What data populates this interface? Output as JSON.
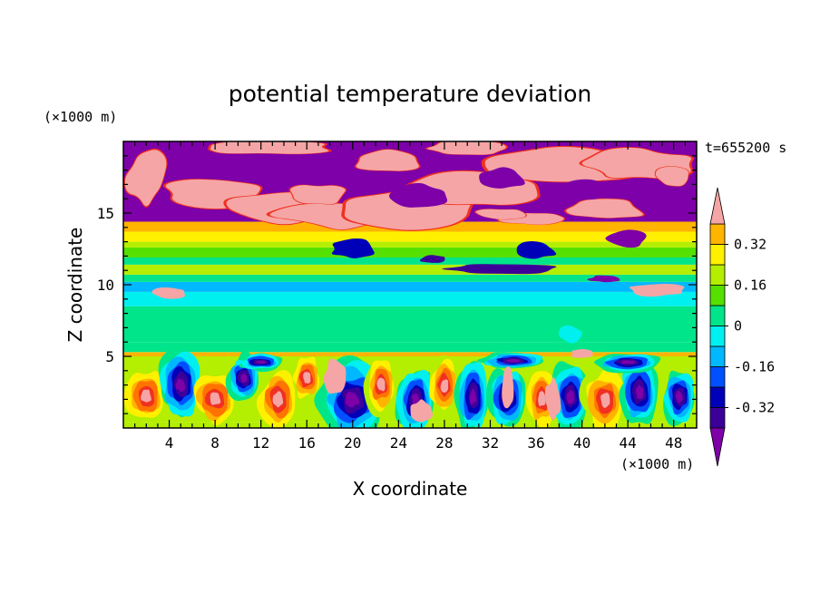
{
  "chart_data": {
    "type": "heatmap",
    "title": "potential temperature deviation",
    "xlabel": "X coordinate",
    "ylabel": "Z coordinate",
    "x_unit": "(×1000 m)",
    "y_unit": "(×1000 m)",
    "time_label": "t=655200 s",
    "xlim": [
      0,
      50
    ],
    "ylim": [
      0,
      20
    ],
    "x_ticks": [
      4,
      8,
      12,
      16,
      20,
      24,
      28,
      32,
      36,
      40,
      44,
      48
    ],
    "y_ticks": [
      5,
      10,
      15
    ],
    "colorbar": {
      "levels": [
        -0.4,
        -0.32,
        -0.24,
        -0.16,
        -0.08,
        0,
        0.08,
        0.16,
        0.24,
        0.32,
        0.4
      ],
      "tick_labels": [
        "0.32",
        "0.16",
        "0",
        "-0.16",
        "-0.32"
      ],
      "tick_values": [
        0.32,
        0.16,
        0,
        -0.16,
        -0.32
      ],
      "colors": [
        "#7d00a8",
        "#3c0099",
        "#0000b8",
        "#0050ff",
        "#00b8ff",
        "#00f0f0",
        "#00e58a",
        "#55e000",
        "#b4ee00",
        "#fff000",
        "#ffb400",
        "#ff7300",
        "#f03020",
        "#f5a5a5"
      ]
    },
    "layers": [
      {
        "z": [
          0.4,
          5.0
        ],
        "pattern": "turbulent mix of all levels, strong positive and negative cells"
      },
      {
        "z": [
          5.0,
          5.3
        ],
        "value": 0.36
      },
      {
        "z": [
          5.3,
          6.0
        ],
        "value": 0.04
      },
      {
        "z": [
          6.0,
          8.5
        ],
        "value": 0.02
      },
      {
        "z": [
          8.5,
          9.5
        ],
        "value": -0.08
      },
      {
        "z": [
          9.5,
          10.2
        ],
        "value": -0.12
      },
      {
        "z": [
          10.2,
          10.7
        ],
        "value": 0.04
      },
      {
        "z": [
          10.7,
          11.4
        ],
        "value": 0.2
      },
      {
        "z": [
          11.4,
          11.9
        ],
        "value": 0.05
      },
      {
        "z": [
          11.9,
          12.6
        ],
        "value": 0.12
      },
      {
        "z": [
          12.6,
          13.0
        ],
        "value": 0.2
      },
      {
        "z": [
          13.0,
          13.7
        ],
        "value": 0.28
      },
      {
        "z": [
          13.7,
          14.4
        ],
        "value": 0.34
      },
      {
        "z": [
          14.4,
          20.0
        ],
        "pattern": "upper layer: pink (>0.36) clouds over purple (<-0.36) background"
      }
    ]
  }
}
